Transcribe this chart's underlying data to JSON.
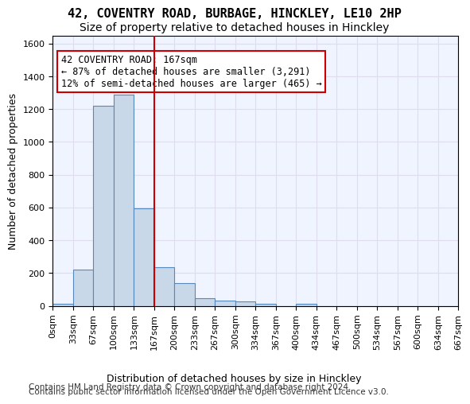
{
  "title_line1": "42, COVENTRY ROAD, BURBAGE, HINCKLEY, LE10 2HP",
  "title_line2": "Size of property relative to detached houses in Hinckley",
  "xlabel": "Distribution of detached houses by size in Hinckley",
  "ylabel": "Number of detached properties",
  "footer_line1": "Contains HM Land Registry data © Crown copyright and database right 2024.",
  "footer_line2": "Contains public sector information licensed under the Open Government Licence v3.0.",
  "annotation_line1": "42 COVENTRY ROAD: 167sqm",
  "annotation_line2": "← 87% of detached houses are smaller (3,291)",
  "annotation_line3": "12% of semi-detached houses are larger (465) →",
  "bar_color": "#c8d8e8",
  "bar_edge_color": "#5588bb",
  "vline_color": "#cc0000",
  "vline_x": 5,
  "annotation_box_edge_color": "#cc0000",
  "grid_color": "#ddddee",
  "bg_color": "#f0f4ff",
  "bin_labels": [
    "0sqm",
    "33sqm",
    "67sqm",
    "100sqm",
    "133sqm",
    "167sqm",
    "200sqm",
    "233sqm",
    "267sqm",
    "300sqm",
    "334sqm",
    "367sqm",
    "400sqm",
    "434sqm",
    "467sqm",
    "500sqm",
    "534sqm",
    "567sqm",
    "600sqm",
    "634sqm",
    "667sqm"
  ],
  "bar_heights": [
    10,
    220,
    1220,
    1290,
    595,
    235,
    138,
    48,
    30,
    25,
    13,
    0,
    13,
    0,
    0,
    0,
    0,
    0,
    0,
    0
  ],
  "ylim": [
    0,
    1650
  ],
  "yticks": [
    0,
    200,
    400,
    600,
    800,
    1000,
    1200,
    1400,
    1600
  ],
  "title_fontsize": 11,
  "subtitle_fontsize": 10,
  "axis_label_fontsize": 9,
  "tick_fontsize": 8,
  "footer_fontsize": 7.5,
  "annotation_fontsize": 8.5
}
